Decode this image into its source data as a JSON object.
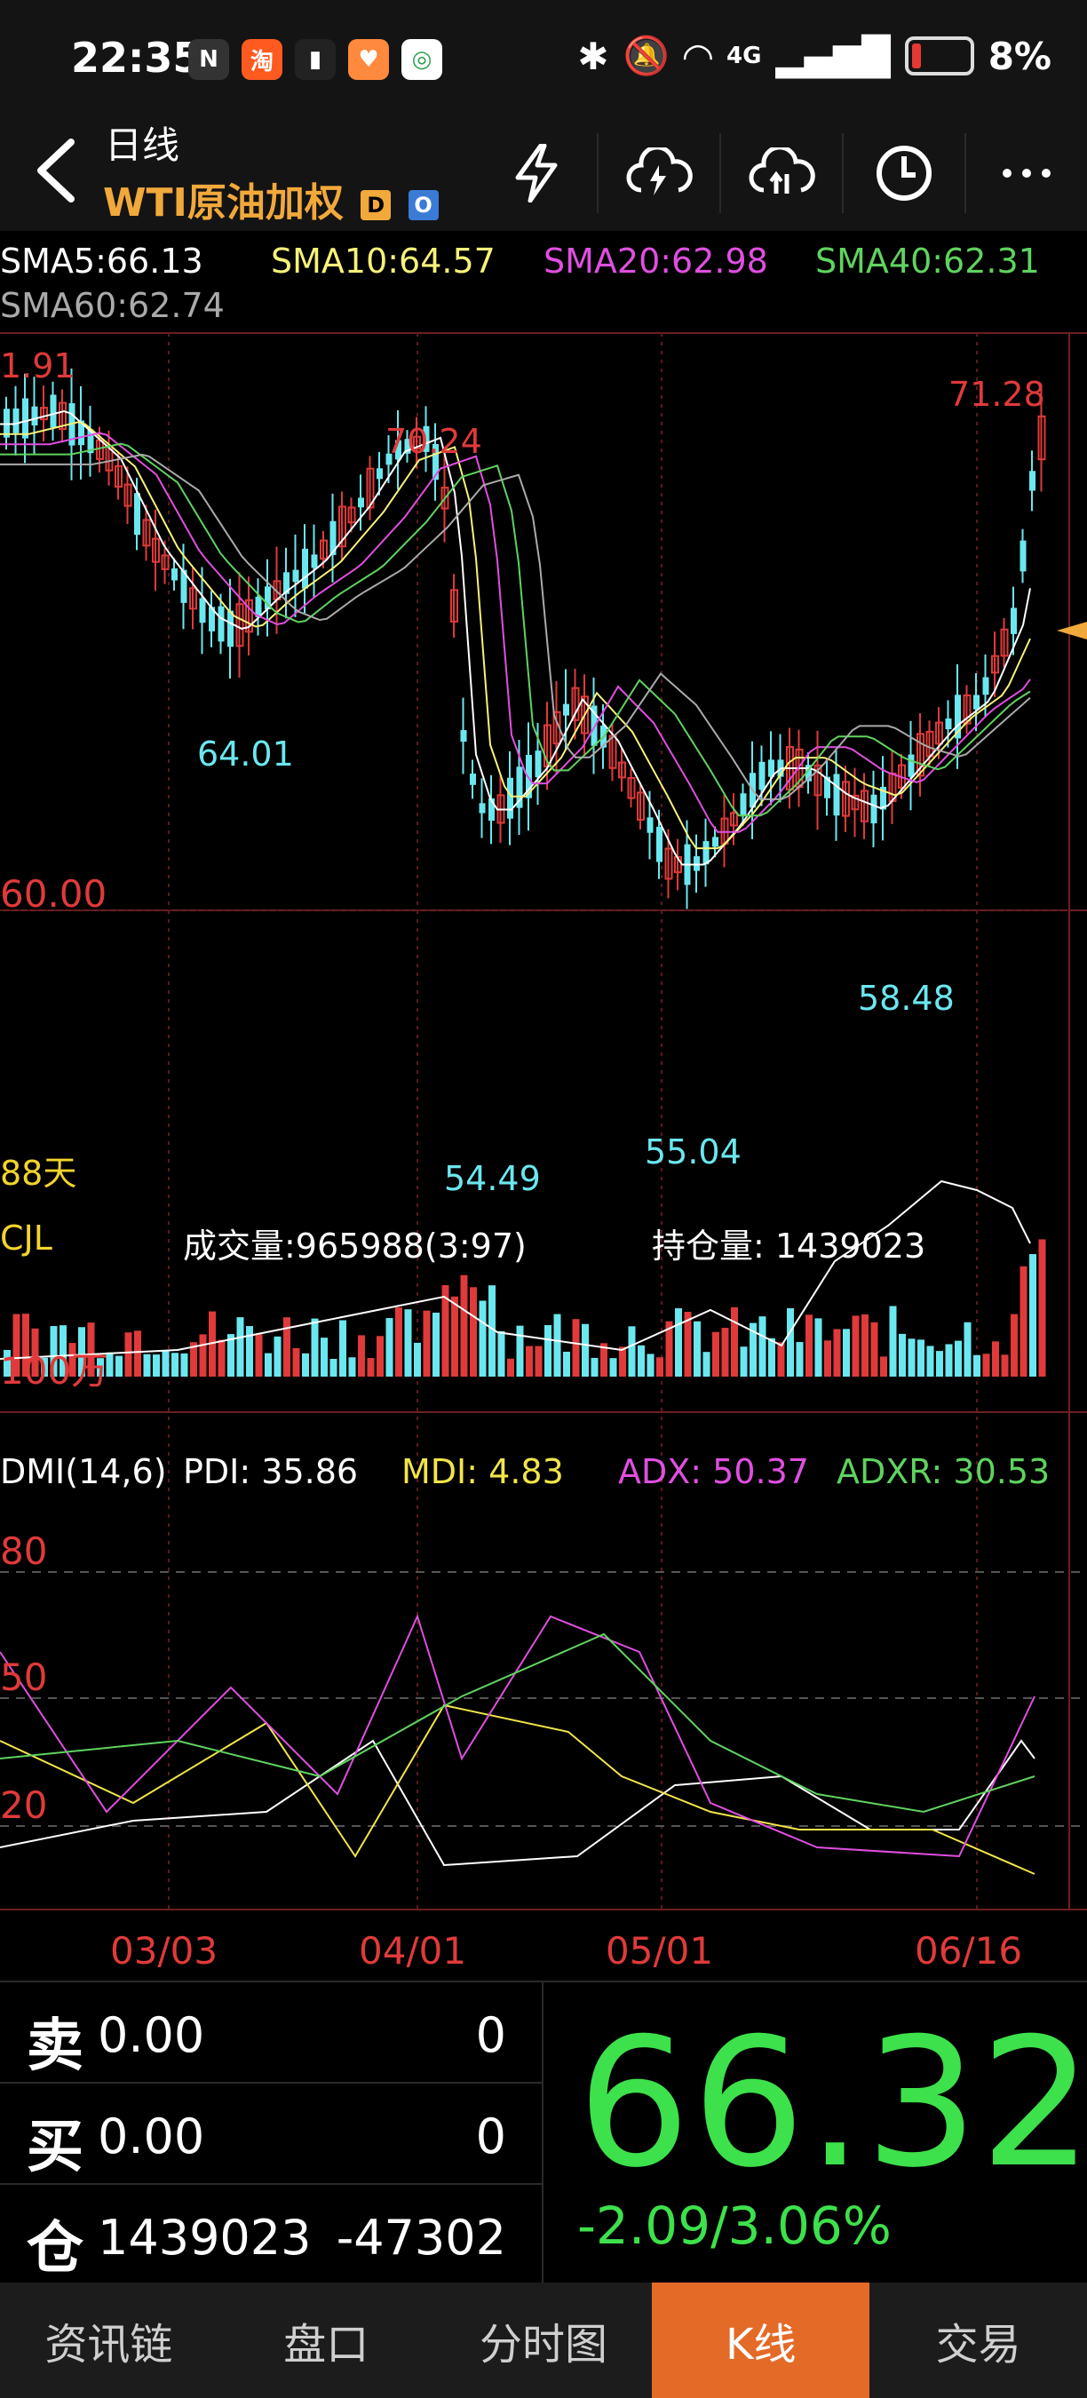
{
  "status": {
    "time": "22:35",
    "battery": "8%",
    "network": "4G"
  },
  "header": {
    "sub": "日线",
    "title": "WTI原油加权",
    "badge_d": "D",
    "badge_o": "O",
    "icons": [
      "flash-icon",
      "cloud-download-icon",
      "cloud-upload-icon",
      "clock-icon",
      "more-icon"
    ]
  },
  "ma": {
    "sma5": "SMA5:66.13",
    "sma10": "SMA10:64.57",
    "sma20": "SMA20:62.98",
    "sma40": "SMA40:62.31",
    "sma60": "SMA60:62.74"
  },
  "kline": {
    "top_cut": "1.91",
    "high_label": "70.24",
    "max_label": "71.28",
    "low1": "64.01",
    "price_line": "60.00",
    "days": "88天",
    "low2": "54.49",
    "low3": "55.04",
    "low4": "58.48"
  },
  "volume": {
    "name": "CJL",
    "turnover": "成交量:965988(3:97)",
    "open_interest": "持仓量: 1439023",
    "scale": "100万"
  },
  "dmi": {
    "name": "DMI(14,6)",
    "pdi": "PDI: 35.86",
    "mdi": "MDI: 4.83",
    "adx": "ADX: 50.37",
    "adxr": "ADXR: 30.53",
    "lvl80": "80",
    "lvl50": "50",
    "lvl20": "20"
  },
  "dates": [
    "03/03",
    "04/01",
    "05/01",
    "06/16"
  ],
  "quote": {
    "sell_label": "卖",
    "sell_price": "0.00",
    "sell_qty": "0",
    "buy_label": "买",
    "buy_price": "0.00",
    "buy_qty": "0",
    "oi_label": "仓",
    "oi_value": "1439023",
    "oi_change": "-47302",
    "last": "66.32",
    "change": "-2.09/3.06%"
  },
  "tabs": [
    "资讯链",
    "盘口",
    "分时图",
    "K线",
    "交易"
  ],
  "colors": {
    "up": "#e03a3a",
    "down": "#6be7ef",
    "accent": "#f2a93b",
    "green": "#3de14b"
  }
}
